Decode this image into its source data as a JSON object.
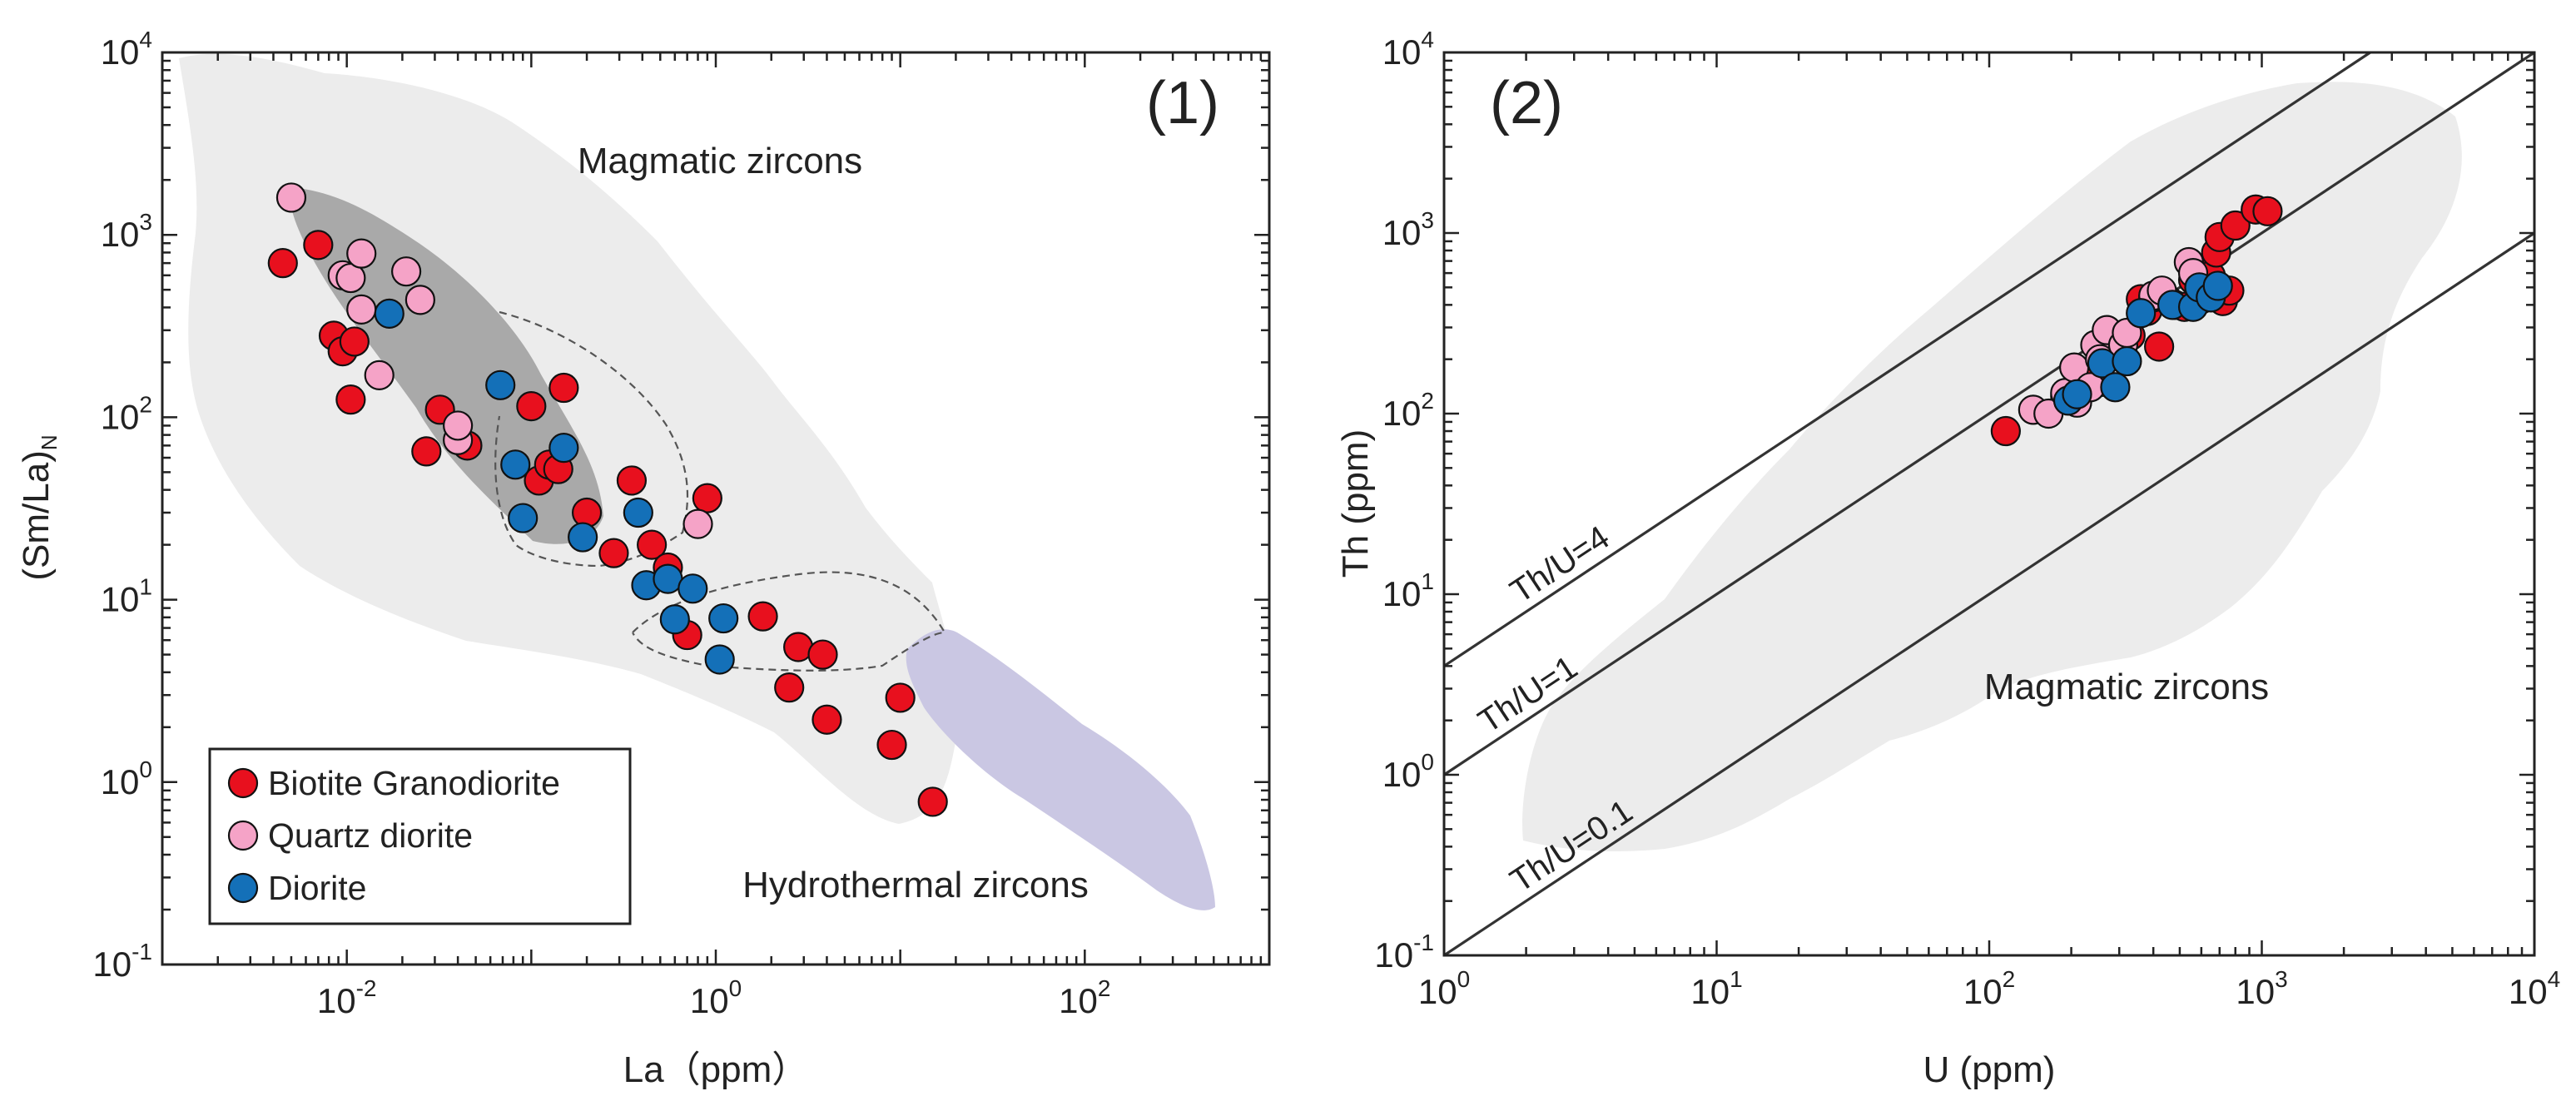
{
  "colors": {
    "biotite": "#e8101e",
    "quartz": "#f5a3c7",
    "diorite": "#1470b8",
    "field_magmatic": "#ececec",
    "field_dark": "#a9a9a9",
    "field_purple": "#cac7e3"
  },
  "chart_data": [
    {
      "type": "scatter",
      "panel_label": "(1)",
      "xlabel": "La（ppm）",
      "ylabel": "(Sm/La)",
      "ylabel_sub": "N",
      "xscale": "log",
      "yscale": "log",
      "xlim": [
        0.001,
        1000
      ],
      "ylim": [
        0.1,
        10000
      ],
      "x_ticks": [
        {
          "value": 0.01,
          "base": "10",
          "exp": "-2"
        },
        {
          "value": 1,
          "base": "10",
          "exp": "0"
        },
        {
          "value": 100,
          "base": "10",
          "exp": "2"
        }
      ],
      "y_ticks": [
        {
          "value": 0.1,
          "base": "10",
          "exp": "-1"
        },
        {
          "value": 1,
          "base": "10",
          "exp": "0"
        },
        {
          "value": 10,
          "base": "10",
          "exp": "1"
        },
        {
          "value": 100,
          "base": "10",
          "exp": "2"
        },
        {
          "value": 1000,
          "base": "10",
          "exp": "3"
        },
        {
          "value": 10000,
          "base": "10",
          "exp": "4"
        }
      ],
      "annotations": [
        {
          "text": "Magmatic zircons",
          "x": 0.2,
          "y": 1600
        },
        {
          "text": "Hydrothermal zircons",
          "x": 12,
          "y": 0.42
        }
      ],
      "legend": {
        "position": "bottom-left",
        "entries": [
          {
            "label": "Biotite Granodiorite",
            "series": "biotite"
          },
          {
            "label": "Quartz diorite",
            "series": "quartz"
          },
          {
            "label": "Diorite",
            "series": "diorite"
          }
        ]
      },
      "series": [
        {
          "name": "Biotite Granodiorite",
          "key": "biotite",
          "points": [
            [
              0.0045,
              700
            ],
            [
              0.007,
              880
            ],
            [
              0.0085,
              280
            ],
            [
              0.0095,
              230
            ],
            [
              0.0105,
              125
            ],
            [
              0.011,
              260
            ],
            [
              0.027,
              65
            ],
            [
              0.032,
              110
            ],
            [
              0.045,
              70
            ],
            [
              0.1,
              115
            ],
            [
              0.11,
              45
            ],
            [
              0.125,
              55
            ],
            [
              0.14,
              52
            ],
            [
              0.15,
              145
            ],
            [
              0.2,
              30
            ],
            [
              0.28,
              18
            ],
            [
              0.35,
              45
            ],
            [
              0.45,
              20
            ],
            [
              0.55,
              15
            ],
            [
              0.7,
              6.4
            ],
            [
              0.9,
              36
            ],
            [
              1.8,
              8.1
            ],
            [
              2.5,
              3.3
            ],
            [
              2.8,
              5.5
            ],
            [
              3.8,
              5.0
            ],
            [
              4.0,
              2.2
            ],
            [
              9.0,
              1.6
            ],
            [
              10.0,
              2.9
            ],
            [
              15.0,
              0.78
            ]
          ]
        },
        {
          "name": "Quartz diorite",
          "key": "quartz",
          "points": [
            [
              0.005,
              1600
            ],
            [
              0.0095,
              600
            ],
            [
              0.0105,
              580
            ],
            [
              0.012,
              390
            ],
            [
              0.012,
              790
            ],
            [
              0.015,
              170
            ],
            [
              0.021,
              630
            ],
            [
              0.025,
              440
            ],
            [
              0.04,
              75
            ],
            [
              0.04,
              90
            ],
            [
              0.8,
              26
            ]
          ]
        },
        {
          "name": "Diorite",
          "key": "diorite",
          "points": [
            [
              0.017,
              370
            ],
            [
              0.068,
              150
            ],
            [
              0.082,
              55
            ],
            [
              0.09,
              28
            ],
            [
              0.15,
              68
            ],
            [
              0.19,
              22
            ],
            [
              0.38,
              30
            ],
            [
              0.42,
              12
            ],
            [
              0.55,
              13
            ],
            [
              0.6,
              7.8
            ],
            [
              0.75,
              11.5
            ],
            [
              1.05,
              4.7
            ],
            [
              1.1,
              7.9
            ]
          ]
        }
      ]
    },
    {
      "type": "scatter",
      "panel_label": "(2)",
      "xlabel": "U (ppm)",
      "ylabel": "Th (ppm)",
      "xscale": "log",
      "yscale": "log",
      "xlim": [
        1,
        10000
      ],
      "ylim": [
        0.1,
        10000
      ],
      "x_ticks": [
        {
          "value": 1,
          "base": "10",
          "exp": "0"
        },
        {
          "value": 10,
          "base": "10",
          "exp": "1"
        },
        {
          "value": 100,
          "base": "10",
          "exp": "2"
        },
        {
          "value": 1000,
          "base": "10",
          "exp": "3"
        },
        {
          "value": 10000,
          "base": "10",
          "exp": "4"
        }
      ],
      "y_ticks": [
        {
          "value": 0.1,
          "base": "10",
          "exp": "-1"
        },
        {
          "value": 1,
          "base": "10",
          "exp": "0"
        },
        {
          "value": 10,
          "base": "10",
          "exp": "1"
        },
        {
          "value": 100,
          "base": "10",
          "exp": "2"
        },
        {
          "value": 1000,
          "base": "10",
          "exp": "3"
        },
        {
          "value": 10000,
          "base": "10",
          "exp": "4"
        }
      ],
      "reference_lines": [
        {
          "label": "Th/U=4",
          "ratio": 4,
          "label_at_u": 1.9
        },
        {
          "label": "Th/U=1",
          "ratio": 1,
          "label_at_u": 1.45
        },
        {
          "label": "Th/U=0.1",
          "ratio": 0.1,
          "label_at_u": 1.9
        }
      ],
      "annotations": [
        {
          "text": "Magmatic zircons",
          "x": 1050,
          "y": 2.5
        }
      ],
      "series": [
        {
          "name": "Biotite Granodiorite",
          "key": "biotite",
          "points": [
            [
              115,
              80
            ],
            [
              190,
              125
            ],
            [
              220,
              150
            ],
            [
              260,
              150
            ],
            [
              270,
              220
            ],
            [
              300,
              260
            ],
            [
              330,
              270
            ],
            [
              360,
              430
            ],
            [
              380,
              370
            ],
            [
              400,
              440
            ],
            [
              420,
              235
            ],
            [
              450,
              430
            ],
            [
              480,
              400
            ],
            [
              520,
              390
            ],
            [
              560,
              550
            ],
            [
              600,
              430
            ],
            [
              620,
              600
            ],
            [
              650,
              580
            ],
            [
              680,
              780
            ],
            [
              700,
              950
            ],
            [
              720,
              420
            ],
            [
              760,
              480
            ],
            [
              800,
              1100
            ],
            [
              950,
              1350
            ],
            [
              1050,
              1320
            ]
          ]
        },
        {
          "name": "Quartz diorite",
          "key": "quartz",
          "points": [
            [
              145,
              105
            ],
            [
              165,
              100
            ],
            [
              190,
              130
            ],
            [
              205,
              180
            ],
            [
              210,
              115
            ],
            [
              235,
              140
            ],
            [
              245,
              240
            ],
            [
              255,
              200
            ],
            [
              270,
              290
            ],
            [
              310,
              240
            ],
            [
              320,
              280
            ],
            [
              400,
              450
            ],
            [
              430,
              480
            ],
            [
              540,
              690
            ],
            [
              560,
              600
            ]
          ]
        },
        {
          "name": "Diorite",
          "key": "diorite",
          "points": [
            [
              195,
              118
            ],
            [
              210,
              128
            ],
            [
              260,
              190
            ],
            [
              290,
              140
            ],
            [
              320,
              195
            ],
            [
              360,
              360
            ],
            [
              470,
              400
            ],
            [
              560,
              390
            ],
            [
              590,
              500
            ],
            [
              650,
              440
            ],
            [
              690,
              510
            ]
          ]
        }
      ]
    }
  ]
}
